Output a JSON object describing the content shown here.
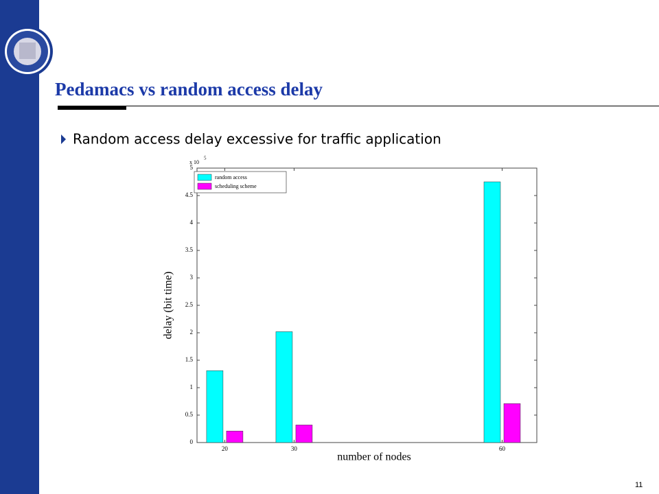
{
  "slide": {
    "title": "Pedamacs vs random access delay",
    "bullet": "Random access delay excessive for traffic application",
    "page_number": "11"
  },
  "chart_data": {
    "type": "bar",
    "x_label": "number of nodes",
    "y_label": "delay (bit time)",
    "y_scale_label": "x 10",
    "y_scale_exponent": "5",
    "x": [
      20,
      30,
      60
    ],
    "series": [
      {
        "name": "random access",
        "color": "#00ffff",
        "values": [
          1.31,
          2.02,
          4.75
        ]
      },
      {
        "name": "scheduling scheme",
        "color": "#ff00ff",
        "values": [
          0.21,
          0.32,
          0.71
        ]
      }
    ],
    "xlim": [
      16,
      65
    ],
    "xticks": [
      20,
      30,
      60
    ],
    "ylim": [
      0,
      5
    ],
    "yticks": [
      0,
      0.5,
      1,
      1.5,
      2,
      2.5,
      3,
      3.5,
      4,
      4.5,
      5
    ],
    "legend": "upper left"
  }
}
